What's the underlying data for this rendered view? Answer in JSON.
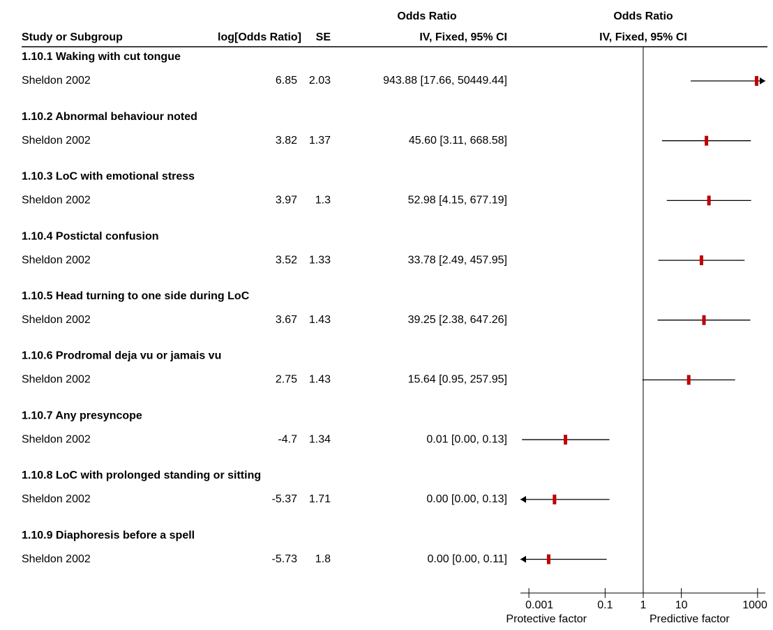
{
  "chart_data": {
    "type": "forest",
    "header": {
      "study": "Study or Subgroup",
      "log_or": "log[Odds Ratio]",
      "se": "SE",
      "or_top": "Odds Ratio",
      "or_sub": "IV, Fixed, 95% CI",
      "plot_top": "Odds Ratio",
      "plot_sub": "IV, Fixed, 95% CI"
    },
    "groups": [
      {
        "title": "1.10.1 Waking with cut tongue",
        "study": {
          "name": "Sheldon 2002",
          "log_or": 6.85,
          "se": 2.03,
          "or": 943.88,
          "ci_low": 17.66,
          "ci_high": 50449.44,
          "or_label": "943.88 [17.66, 50449.44]"
        }
      },
      {
        "title": "1.10.2 Abnormal behaviour noted",
        "study": {
          "name": "Sheldon 2002",
          "log_or": 3.82,
          "se": 1.37,
          "or": 45.6,
          "ci_low": 3.11,
          "ci_high": 668.58,
          "or_label": "45.60 [3.11, 668.58]"
        }
      },
      {
        "title": "1.10.3 LoC with emotional stress",
        "study": {
          "name": "Sheldon 2002",
          "log_or": 3.97,
          "se": 1.3,
          "or": 52.98,
          "ci_low": 4.15,
          "ci_high": 677.19,
          "or_label": "52.98 [4.15, 677.19]"
        }
      },
      {
        "title": "1.10.4 Postictal confusion",
        "study": {
          "name": "Sheldon 2002",
          "log_or": 3.52,
          "se": 1.33,
          "or": 33.78,
          "ci_low": 2.49,
          "ci_high": 457.95,
          "or_label": "33.78 [2.49, 457.95]"
        }
      },
      {
        "title": "1.10.5 Head turning to one side during LoC",
        "study": {
          "name": "Sheldon 2002",
          "log_or": 3.67,
          "se": 1.43,
          "or": 39.25,
          "ci_low": 2.38,
          "ci_high": 647.26,
          "or_label": "39.25 [2.38, 647.26]"
        }
      },
      {
        "title": "1.10.6 Prodromal deja vu or jamais vu",
        "study": {
          "name": "Sheldon 2002",
          "log_or": 2.75,
          "se": 1.43,
          "or": 15.64,
          "ci_low": 0.95,
          "ci_high": 257.95,
          "or_label": "15.64 [0.95, 257.95]"
        }
      },
      {
        "title": "1.10.7 Any presyncope",
        "study": {
          "name": "Sheldon 2002",
          "log_or": -4.7,
          "se": 1.34,
          "or": 0.0091,
          "ci_low": 0.00066,
          "ci_high": 0.13,
          "or_label": "0.01 [0.00, 0.13]"
        }
      },
      {
        "title": "1.10.8 LoC with prolonged standing or sitting",
        "study": {
          "name": "Sheldon 2002",
          "log_or": -5.37,
          "se": 1.71,
          "or": 0.0047,
          "ci_low": 0.00016,
          "ci_high": 0.13,
          "or_label": "0.00 [0.00, 0.13]"
        }
      },
      {
        "title": "1.10.9 Diaphoresis before a spell",
        "study": {
          "name": "Sheldon 2002",
          "log_or": -5.73,
          "se": 1.8,
          "or": 0.0033,
          "ci_low": 9.5e-05,
          "ci_high": 0.11,
          "or_label": "0.00 [0.00, 0.11]"
        }
      }
    ],
    "x_scale": "log",
    "xlim": [
      0.0006,
      1600
    ],
    "xticks": [
      0.001,
      0.1,
      1,
      10,
      1000
    ],
    "footer_left": "Protective factor",
    "footer_right": "Predictive factor",
    "color": "#c00000"
  }
}
